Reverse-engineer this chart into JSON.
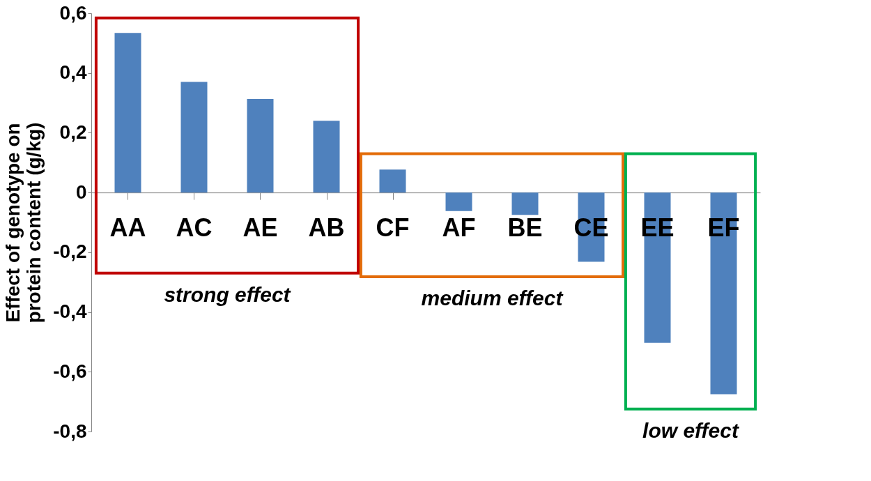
{
  "chart_data": {
    "type": "bar",
    "ylabel": "Effect of genotype on protein content (g/kg)",
    "categories": [
      "AA",
      "AC",
      "AE",
      "AB",
      "CF",
      "AF",
      "BE",
      "CE",
      "EE",
      "EF"
    ],
    "values": [
      0.534,
      0.37,
      0.313,
      0.24,
      0.077,
      -0.062,
      -0.075,
      -0.232,
      -0.503,
      -0.675
    ],
    "color": "#4f81bd",
    "ylim": [
      -0.8,
      0.6
    ],
    "yticks": [
      {
        "value": 0.6,
        "label": "0,6"
      },
      {
        "value": 0.4,
        "label": "0,4"
      },
      {
        "value": 0.2,
        "label": "0,2"
      },
      {
        "value": 0,
        "label": "0"
      },
      {
        "value": -0.2,
        "label": "-0,2"
      },
      {
        "value": -0.4,
        "label": "-0,4"
      },
      {
        "value": -0.6,
        "label": "-0,6"
      },
      {
        "value": -0.8,
        "label": "-0,8"
      }
    ],
    "grid": false,
    "annotations": [
      "strong effect",
      "medium effect",
      "low effect"
    ]
  }
}
